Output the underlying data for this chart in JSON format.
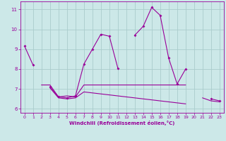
{
  "xlabel": "Windchill (Refroidissement éolien,°C)",
  "ylabel": "",
  "background_color": "#cce8e8",
  "line_color": "#990099",
  "grid_color": "#aacccc",
  "xlim": [
    -0.5,
    23.5
  ],
  "ylim": [
    5.8,
    11.4
  ],
  "yticks": [
    6,
    7,
    8,
    9,
    10,
    11
  ],
  "xticks": [
    0,
    1,
    2,
    3,
    4,
    5,
    6,
    7,
    8,
    9,
    10,
    11,
    12,
    13,
    14,
    15,
    16,
    17,
    18,
    19,
    20,
    21,
    22,
    23
  ],
  "series1_x": [
    0,
    1,
    2,
    3,
    4,
    5,
    6,
    7,
    8,
    9,
    10,
    11,
    12,
    13,
    14,
    15,
    16,
    17,
    18,
    19,
    20,
    21,
    22,
    23
  ],
  "series1_y": [
    9.15,
    8.2,
    null,
    7.1,
    6.6,
    6.55,
    6.65,
    8.25,
    9.0,
    9.75,
    9.65,
    8.05,
    null,
    9.7,
    10.15,
    11.1,
    10.7,
    8.55,
    7.25,
    8.0,
    null,
    null,
    6.5,
    6.4
  ],
  "series2_x": [
    0,
    1,
    2,
    3,
    4,
    5,
    6,
    7,
    8,
    9,
    10,
    11,
    12,
    13,
    14,
    15,
    16,
    17,
    18,
    19,
    20,
    21,
    22,
    23
  ],
  "series2_y": [
    null,
    null,
    7.2,
    7.2,
    6.6,
    6.65,
    6.6,
    7.2,
    7.2,
    7.2,
    7.2,
    7.2,
    7.2,
    7.2,
    7.2,
    7.2,
    7.2,
    7.2,
    7.2,
    7.2,
    null,
    null,
    null,
    null
  ],
  "series3_x": [
    0,
    1,
    2,
    3,
    4,
    5,
    6,
    7,
    8,
    9,
    10,
    11,
    12,
    13,
    14,
    15,
    16,
    17,
    18,
    19,
    20,
    21,
    22,
    23
  ],
  "series3_y": [
    null,
    null,
    null,
    7.05,
    6.55,
    6.5,
    6.55,
    6.85,
    6.8,
    6.75,
    6.7,
    6.65,
    6.6,
    6.55,
    6.5,
    6.45,
    6.4,
    6.35,
    6.3,
    6.25,
    null,
    6.55,
    6.4,
    6.35
  ],
  "marker_size": 2.0,
  "line_width": 0.8,
  "tick_fontsize": 4.5,
  "xlabel_fontsize": 5.0
}
